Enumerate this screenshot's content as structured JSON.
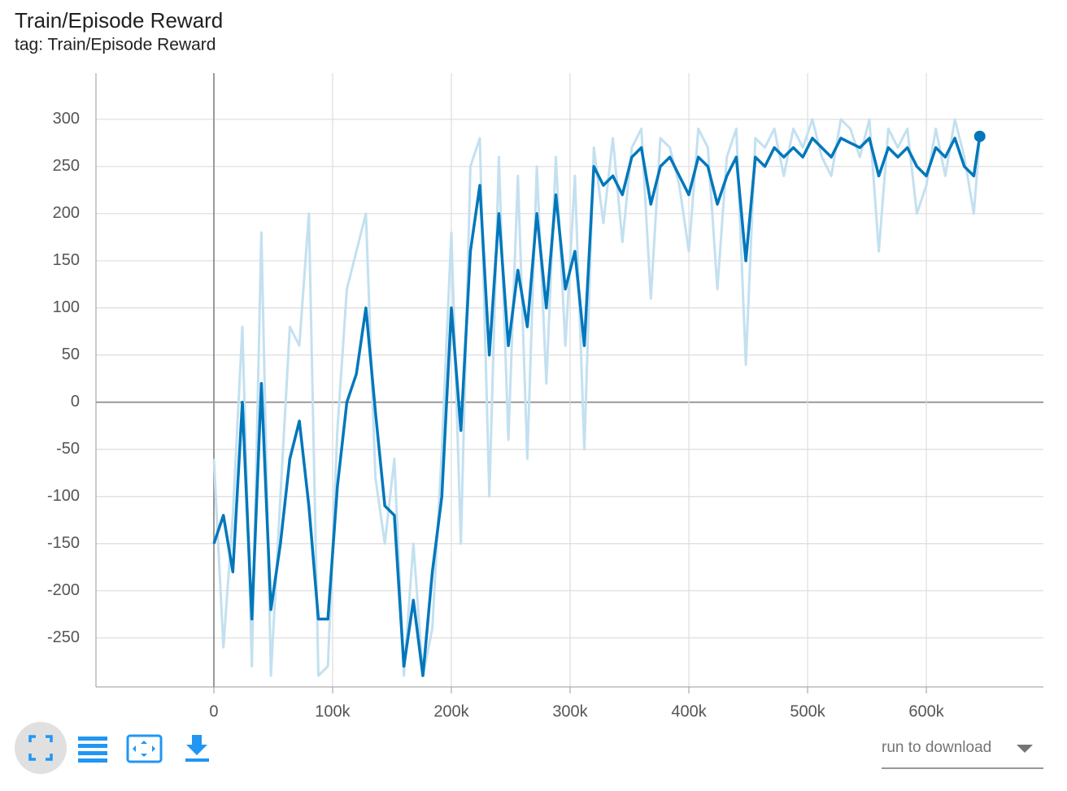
{
  "header": {
    "title": "Train/Episode Reward",
    "tag": "tag: Train/Episode Reward"
  },
  "controls": {
    "download_label": "run to download"
  },
  "chart_data": {
    "type": "line",
    "x": [
      0,
      8000,
      16000,
      24000,
      32000,
      40000,
      48000,
      56000,
      64000,
      72000,
      80000,
      88000,
      96000,
      104000,
      112000,
      120000,
      128000,
      136000,
      144000,
      152000,
      160000,
      168000,
      176000,
      184000,
      192000,
      200000,
      208000,
      216000,
      224000,
      232000,
      240000,
      248000,
      256000,
      264000,
      272000,
      280000,
      288000,
      296000,
      304000,
      312000,
      320000,
      328000,
      336000,
      344000,
      352000,
      360000,
      368000,
      376000,
      384000,
      392000,
      400000,
      408000,
      416000,
      424000,
      432000,
      440000,
      448000,
      456000,
      464000,
      472000,
      480000,
      488000,
      496000,
      504000,
      512000,
      520000,
      528000,
      536000,
      544000,
      552000,
      560000,
      568000,
      576000,
      584000,
      592000,
      600000,
      608000,
      616000,
      624000,
      632000,
      640000,
      645000
    ],
    "series": [
      {
        "color": "#c3e0f0",
        "values": [
          -60,
          -260,
          -120,
          80,
          -280,
          180,
          -290,
          -100,
          80,
          60,
          200,
          -290,
          -280,
          -30,
          120,
          160,
          200,
          -80,
          -150,
          -60,
          -290,
          -150,
          -290,
          -240,
          -50,
          180,
          -150,
          250,
          280,
          -100,
          260,
          -40,
          240,
          -60,
          250,
          20,
          260,
          60,
          240,
          -50,
          270,
          190,
          280,
          170,
          270,
          290,
          110,
          280,
          270,
          230,
          160,
          290,
          270,
          120,
          260,
          290,
          40,
          280,
          270,
          290,
          240,
          290,
          270,
          300,
          260,
          240,
          300,
          290,
          260,
          300,
          160,
          290,
          270,
          290,
          200,
          230,
          290,
          240,
          300,
          260,
          200,
          280
        ]
      },
      {
        "color": "#0077bb",
        "values": [
          -150,
          -120,
          -180,
          0,
          -230,
          20,
          -220,
          -150,
          -60,
          -20,
          -110,
          -230,
          -230,
          -90,
          0,
          30,
          100,
          -10,
          -110,
          -120,
          -280,
          -210,
          -290,
          -180,
          -100,
          100,
          -30,
          160,
          230,
          50,
          200,
          60,
          140,
          80,
          200,
          100,
          220,
          120,
          160,
          60,
          250,
          230,
          240,
          220,
          260,
          270,
          210,
          250,
          260,
          240,
          220,
          260,
          250,
          210,
          240,
          260,
          150,
          260,
          250,
          270,
          260,
          270,
          260,
          280,
          270,
          260,
          280,
          275,
          270,
          280,
          240,
          270,
          260,
          270,
          250,
          240,
          270,
          260,
          280,
          250,
          240,
          282
        ]
      }
    ],
    "xlim": [
      -99300,
      698600
    ],
    "ylim": [
      -302,
      349
    ],
    "xticks": [
      {
        "value": 0,
        "label": "0"
      },
      {
        "value": 100000,
        "label": "100k"
      },
      {
        "value": 200000,
        "label": "200k"
      },
      {
        "value": 300000,
        "label": "300k"
      },
      {
        "value": 400000,
        "label": "400k"
      },
      {
        "value": 500000,
        "label": "500k"
      },
      {
        "value": 600000,
        "label": "600k"
      }
    ],
    "yticks": [
      -250,
      -200,
      -150,
      -100,
      -50,
      0,
      50,
      100,
      150,
      200,
      250,
      300
    ],
    "grid": true
  }
}
